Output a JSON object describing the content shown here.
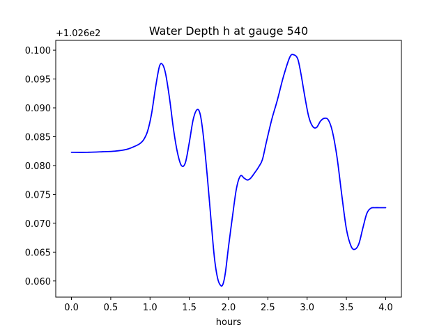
{
  "chart_data": {
    "type": "line",
    "title": "Water Depth h at gauge 540",
    "xlabel": "hours",
    "ylabel": "",
    "offset_label": "+1.026e2",
    "xlim": [
      -0.2,
      4.2
    ],
    "ylim": [
      0.0572,
      0.1017
    ],
    "grid": false,
    "xticks": [
      {
        "value": 0.0,
        "label": "0.0"
      },
      {
        "value": 0.5,
        "label": "0.5"
      },
      {
        "value": 1.0,
        "label": "1.0"
      },
      {
        "value": 1.5,
        "label": "1.5"
      },
      {
        "value": 2.0,
        "label": "2.0"
      },
      {
        "value": 2.5,
        "label": "2.5"
      },
      {
        "value": 3.0,
        "label": "3.0"
      },
      {
        "value": 3.5,
        "label": "3.5"
      },
      {
        "value": 4.0,
        "label": "4.0"
      }
    ],
    "yticks": [
      {
        "value": 0.06,
        "label": "0.060"
      },
      {
        "value": 0.065,
        "label": "0.065"
      },
      {
        "value": 0.07,
        "label": "0.070"
      },
      {
        "value": 0.075,
        "label": "0.075"
      },
      {
        "value": 0.08,
        "label": "0.080"
      },
      {
        "value": 0.085,
        "label": "0.085"
      },
      {
        "value": 0.09,
        "label": "0.090"
      },
      {
        "value": 0.095,
        "label": "0.095"
      },
      {
        "value": 0.1,
        "label": "0.100"
      }
    ],
    "series": [
      {
        "color": "#0000ff",
        "x": [
          0.0,
          0.2,
          0.4,
          0.55,
          0.7,
          0.8,
          0.87,
          0.92,
          0.97,
          1.02,
          1.07,
          1.12,
          1.16,
          1.2,
          1.25,
          1.3,
          1.35,
          1.4,
          1.45,
          1.5,
          1.55,
          1.6,
          1.64,
          1.68,
          1.73,
          1.78,
          1.82,
          1.86,
          1.9,
          1.93,
          1.96,
          2.0,
          2.05,
          2.1,
          2.15,
          2.2,
          2.24,
          2.28,
          2.33,
          2.38,
          2.43,
          2.48,
          2.55,
          2.62,
          2.7,
          2.78,
          2.83,
          2.88,
          2.92,
          2.97,
          3.02,
          3.07,
          3.12,
          3.17,
          3.22,
          3.27,
          3.32,
          3.38,
          3.44,
          3.5,
          3.56,
          3.61,
          3.66,
          3.71,
          3.76,
          3.81,
          3.86,
          3.92,
          4.0
        ],
        "y": [
          0.0823,
          0.0823,
          0.0824,
          0.0825,
          0.0828,
          0.0833,
          0.0838,
          0.0845,
          0.086,
          0.089,
          0.0935,
          0.0972,
          0.0975,
          0.0958,
          0.0915,
          0.0862,
          0.0822,
          0.08,
          0.0805,
          0.084,
          0.088,
          0.0897,
          0.0888,
          0.085,
          0.078,
          0.07,
          0.064,
          0.0605,
          0.0592,
          0.0595,
          0.0615,
          0.066,
          0.0712,
          0.076,
          0.0782,
          0.0778,
          0.0775,
          0.0778,
          0.0787,
          0.0797,
          0.081,
          0.084,
          0.088,
          0.0913,
          0.0955,
          0.0988,
          0.0992,
          0.0985,
          0.096,
          0.092,
          0.0885,
          0.0868,
          0.0866,
          0.0877,
          0.0882,
          0.0879,
          0.086,
          0.0815,
          0.075,
          0.069,
          0.066,
          0.0655,
          0.0665,
          0.0692,
          0.0717,
          0.0726,
          0.0727,
          0.0727,
          0.0727
        ]
      }
    ]
  }
}
